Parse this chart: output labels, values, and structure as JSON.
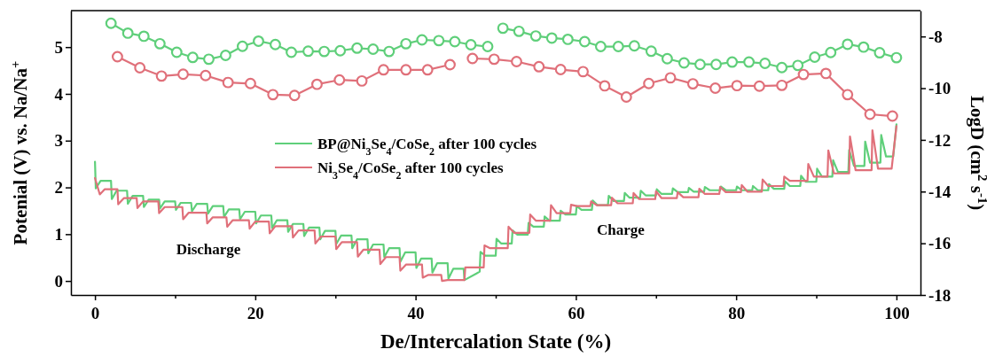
{
  "chart_data": {
    "type": "line",
    "xlabel": "De/Intercalation State (%)",
    "ylabel": "Potenial (V) vs. Na/Na$^{+}$",
    "y2label": "LogD (cm$^{2}$ s$^{-1}$)",
    "xlim": [
      -3,
      103
    ],
    "xticks": [
      0,
      {
        "value": 10,
        "label": null
      },
      20,
      {
        "value": 30,
        "label": null
      },
      40,
      {
        "value": 50,
        "label": null
      },
      60,
      {
        "value": 70,
        "label": null
      },
      80,
      {
        "value": 90,
        "label": null
      },
      100
    ],
    "ylim": [
      -0.3,
      5.78
    ],
    "yticks": [
      0,
      1,
      2,
      3,
      4,
      5
    ],
    "y2lim": [
      -18,
      -7
    ],
    "y2ticks": [
      -18,
      -16,
      -14,
      -12,
      -10,
      -8
    ],
    "legend": "center",
    "annotations": [
      "Discharge",
      "Charge"
    ],
    "series": [
      {
        "name": "BP@Ni$_{3}$Se$_{4}$/CoSe$_{2}$ after 100 cycles",
        "color": "#5fcf7a",
        "marker": "none",
        "x": [
          0,
          0.1,
          0.7,
          2,
          2.1,
          2.7,
          4,
          4.1,
          4.7,
          6,
          6.1,
          6.7,
          8,
          8.1,
          8.7,
          10,
          10.1,
          10.7,
          12,
          12.1,
          12.7,
          14,
          14.1,
          14.7,
          16,
          16.1,
          16.7,
          18,
          18.1,
          18.7,
          20,
          20.1,
          20.7,
          22,
          22.1,
          22.7,
          24,
          24.1,
          24.7,
          26,
          26.1,
          26.7,
          28,
          28.1,
          28.7,
          30,
          30.1,
          30.7,
          32,
          32.1,
          32.7,
          34,
          34.1,
          34.7,
          36,
          36.1,
          36.7,
          38,
          38.1,
          38.7,
          40,
          40.1,
          40.7,
          42,
          42.1,
          42.7,
          44,
          44.1,
          44.7,
          46,
          46.1,
          47.6,
          48,
          48.1,
          48.7,
          50,
          50.1,
          50.7,
          52,
          52.1,
          52.7,
          54,
          54.1,
          54.7,
          56,
          56.1,
          56.7,
          58,
          58.1,
          58.7,
          60,
          60.1,
          60.7,
          62,
          62.1,
          62.7,
          64,
          64.1,
          64.7,
          66,
          66.1,
          66.7,
          68,
          68.1,
          68.7,
          70,
          70.1,
          70.7,
          72,
          72.1,
          72.7,
          74,
          74.1,
          74.7,
          76,
          76.1,
          76.7,
          78,
          78.1,
          78.7,
          80,
          80.1,
          80.7,
          82,
          82.1,
          82.7,
          84,
          84.1,
          84.7,
          86,
          86.1,
          86.7,
          88,
          88.1,
          88.7,
          90,
          90.1,
          90.7,
          92,
          92.1,
          92.7,
          94,
          94.1,
          94.7,
          96,
          96.1,
          96.7,
          98,
          98.1,
          98.7,
          99.6,
          100
        ],
        "values": [
          2.55,
          1.98,
          2.14,
          2.14,
          1.75,
          1.93,
          1.93,
          1.65,
          1.82,
          1.82,
          1.58,
          1.74,
          1.74,
          1.55,
          1.7,
          1.7,
          1.52,
          1.67,
          1.67,
          1.49,
          1.65,
          1.65,
          1.44,
          1.6,
          1.6,
          1.37,
          1.53,
          1.53,
          1.32,
          1.48,
          1.48,
          1.23,
          1.4,
          1.4,
          1.13,
          1.3,
          1.3,
          1.05,
          1.22,
          1.22,
          0.96,
          1.14,
          1.14,
          0.89,
          1.07,
          1.07,
          0.79,
          0.97,
          0.97,
          0.7,
          0.89,
          0.89,
          0.59,
          0.78,
          0.78,
          0.51,
          0.7,
          0.7,
          0.41,
          0.61,
          0.61,
          0.28,
          0.48,
          0.48,
          0.18,
          0.38,
          0.38,
          0.05,
          0.26,
          0.26,
          0.02,
          0.16,
          0.2,
          0.62,
          0.54,
          0.54,
          0.9,
          0.8,
          0.8,
          1.08,
          0.99,
          0.99,
          1.24,
          1.16,
          1.16,
          1.38,
          1.29,
          1.29,
          1.5,
          1.42,
          1.42,
          1.6,
          1.52,
          1.52,
          1.72,
          1.62,
          1.62,
          1.82,
          1.71,
          1.71,
          1.88,
          1.78,
          1.78,
          1.93,
          1.83,
          1.83,
          1.96,
          1.86,
          1.86,
          1.98,
          1.9,
          1.9,
          1.99,
          1.91,
          1.91,
          2.01,
          1.94,
          1.94,
          2.02,
          1.94,
          1.94,
          2.02,
          1.94,
          1.94,
          2.03,
          1.94,
          1.94,
          2.07,
          1.97,
          1.97,
          2.13,
          2.03,
          2.03,
          2.25,
          2.12,
          2.12,
          2.4,
          2.23,
          2.23,
          2.58,
          2.33,
          2.33,
          2.8,
          2.46,
          2.46,
          2.98,
          2.53,
          2.53,
          3.12,
          2.66,
          2.66,
          3.35
        ]
      },
      {
        "name": "Ni$_{3}$Se$_{4}$/CoSe$_{2}$ after 100 cycles",
        "color": "#e0707a",
        "marker": "none",
        "x": [
          0,
          0.6,
          1.2,
          2.8,
          2.9,
          3.6,
          5.2,
          5.3,
          6.0,
          7.9,
          8.0,
          8.7,
          10.9,
          11.0,
          11.7,
          13.9,
          14.0,
          14.7,
          16.4,
          16.5,
          17.2,
          19.2,
          19.3,
          20.0,
          21.7,
          21.8,
          22.5,
          24.6,
          24.7,
          25.4,
          27.4,
          27.5,
          28.2,
          30.0,
          30.1,
          30.8,
          32.7,
          32.8,
          33.5,
          35.5,
          35.6,
          36.3,
          38.0,
          38.1,
          38.8,
          40.8,
          40.9,
          41.6,
          43.2,
          43.3,
          44.0,
          46.1,
          46.2,
          48.5,
          48.6,
          49.3,
          51.5,
          51.6,
          52.3,
          54.2,
          54.3,
          55.0,
          56.8,
          56.9,
          57.6,
          59.3,
          59.4,
          60.1,
          61.8,
          61.9,
          62.6,
          64.4,
          64.5,
          65.2,
          67.1,
          67.2,
          67.9,
          69.9,
          70.0,
          70.7,
          72.6,
          72.7,
          73.4,
          75.3,
          75.4,
          76.1,
          77.9,
          78.0,
          78.7,
          80.6,
          80.7,
          81.4,
          83.2,
          83.3,
          84.0,
          85.9,
          86.0,
          86.7,
          88.9,
          89.0,
          89.7,
          91.4,
          91.5,
          92.2,
          94.1,
          94.2,
          94.9,
          96.9,
          97.0,
          97.7,
          99.4,
          100
        ],
        "values": [
          2.2,
          1.85,
          1.96,
          1.96,
          1.64,
          1.77,
          1.77,
          1.56,
          1.7,
          1.7,
          1.45,
          1.58,
          1.58,
          1.32,
          1.46,
          1.46,
          1.23,
          1.36,
          1.36,
          1.16,
          1.3,
          1.3,
          1.12,
          1.27,
          1.27,
          1.02,
          1.17,
          1.17,
          0.93,
          1.08,
          1.08,
          0.8,
          0.95,
          0.95,
          0.68,
          0.83,
          0.83,
          0.52,
          0.67,
          0.67,
          0.36,
          0.51,
          0.51,
          0.22,
          0.35,
          0.35,
          0.07,
          0.13,
          0.13,
          0,
          0.02,
          0.02,
          0.29,
          0.29,
          0.76,
          0.7,
          0.7,
          1.16,
          1.03,
          1.03,
          1.42,
          1.29,
          1.29,
          1.62,
          1.45,
          1.45,
          1.63,
          1.6,
          1.6,
          1.7,
          1.62,
          1.62,
          1.78,
          1.66,
          1.66,
          1.88,
          1.75,
          1.75,
          1.92,
          1.77,
          1.77,
          1.9,
          1.79,
          1.79,
          1.97,
          1.86,
          1.86,
          2.01,
          1.9,
          1.9,
          2.05,
          1.91,
          1.91,
          2.17,
          2.03,
          2.03,
          2.23,
          2.14,
          2.14,
          2.5,
          2.23,
          2.23,
          2.79,
          2.3,
          2.3,
          3.09,
          2.37,
          2.37,
          3.22,
          2.4,
          2.4,
          3.31
        ]
      },
      {
        "color": "#5fcf7a",
        "axis": "y2",
        "marker": "circle",
        "x": [
          2.0,
          4.1,
          6.1,
          8.1,
          10.2,
          12.2,
          14.2,
          16.3,
          18.4,
          20.4,
          22.5,
          24.5,
          26.6,
          28.6,
          30.6,
          32.7,
          34.7,
          36.7,
          38.8,
          40.8,
          42.9,
          44.9,
          46.9,
          49.0,
          50,
          50.9,
          52.9,
          55.0,
          57.0,
          59.0,
          61.1,
          63.1,
          65.3,
          67.3,
          69.4,
          71.4,
          73.5,
          75.5,
          77.5,
          79.5,
          81.6,
          83.6,
          85.7,
          87.7,
          89.8,
          91.8,
          93.9,
          95.9,
          97.9,
          100
        ],
        "values": [
          -7.49,
          -7.87,
          -7.99,
          -8.28,
          -8.61,
          -8.81,
          -8.88,
          -8.73,
          -8.38,
          -8.18,
          -8.31,
          -8.61,
          -8.57,
          -8.58,
          -8.55,
          -8.45,
          -8.49,
          -8.58,
          -8.28,
          -8.13,
          -8.16,
          -8.2,
          -8.32,
          -8.39,
          null,
          -7.68,
          -7.8,
          -7.98,
          -8.06,
          -8.11,
          -8.2,
          -8.39,
          -8.39,
          -8.36,
          -8.57,
          -8.86,
          -9.02,
          -9.08,
          -9.08,
          -8.99,
          -8.99,
          -9.04,
          -9.2,
          -9.12,
          -8.8,
          -8.62,
          -8.3,
          -8.41,
          -8.63,
          -8.82
        ]
      },
      {
        "color": "#e0707a",
        "axis": "y2",
        "marker": "circle",
        "x": [
          2.8,
          5.6,
          8.3,
          11.0,
          13.8,
          16.6,
          19.4,
          22.2,
          24.9,
          27.7,
          30.5,
          33.3,
          36.0,
          38.8,
          41.5,
          44.3,
          45.7,
          47.1,
          49.8,
          52.6,
          55.4,
          58.1,
          60.9,
          63.6,
          66.3,
          69.1,
          71.8,
          74.6,
          77.4,
          80.1,
          82.9,
          85.7,
          88.4,
          91.2,
          93.9,
          96.7,
          99.5
        ],
        "values": [
          -8.78,
          -9.21,
          -9.53,
          -9.46,
          -9.51,
          -9.78,
          -9.82,
          -10.25,
          -10.28,
          -9.85,
          -9.68,
          -9.72,
          -9.29,
          -9.29,
          -9.29,
          -9.09,
          null,
          -8.85,
          -8.88,
          -8.97,
          -9.17,
          -9.28,
          -9.36,
          -9.91,
          -10.34,
          -9.82,
          -9.6,
          -9.83,
          -10.0,
          -9.9,
          -9.92,
          -9.89,
          -9.47,
          -9.43,
          -10.25,
          -11.01,
          -11.08
        ]
      }
    ]
  }
}
